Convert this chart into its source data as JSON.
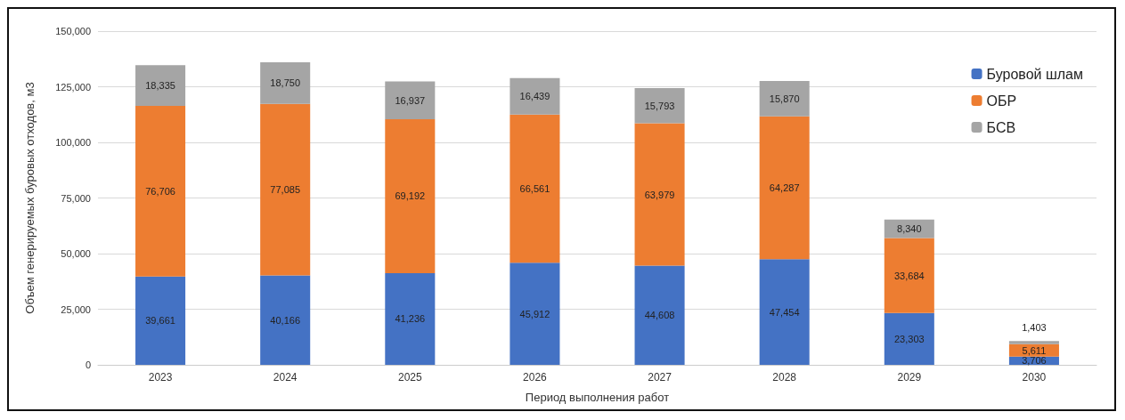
{
  "chart_data": {
    "type": "bar",
    "stacked": true,
    "xlabel": "Период выполнения работ",
    "ylabel": "Объем генерируемых буровых отходов, м3",
    "categories": [
      "2023",
      "2024",
      "2025",
      "2026",
      "2027",
      "2028",
      "2029",
      "2030"
    ],
    "series": [
      {
        "name": "Буровой шлам",
        "color": "#4472c4",
        "values": [
          39661,
          40166,
          41236,
          45912,
          44608,
          47454,
          23303,
          3706
        ],
        "value_labels": [
          "39,661",
          "40,166",
          "41,236",
          "45,912",
          "44,608",
          "47,454",
          "23,303",
          "3,706"
        ]
      },
      {
        "name": "ОБР",
        "color": "#ed7d31",
        "values": [
          76706,
          77085,
          69192,
          66561,
          63979,
          64287,
          33684,
          5611
        ],
        "value_labels": [
          "76,706",
          "77,085",
          "69,192",
          "66,561",
          "63,979",
          "64,287",
          "33,684",
          "5,611"
        ]
      },
      {
        "name": "БСВ",
        "color": "#a5a5a5",
        "values": [
          18335,
          18750,
          16937,
          16439,
          15793,
          15870,
          8340,
          1403
        ],
        "value_labels": [
          "18,335",
          "18,750",
          "16,937",
          "16,439",
          "15,793",
          "15,870",
          "8,340",
          "1,403"
        ]
      }
    ],
    "ylim": [
      0,
      150000
    ],
    "yticks": [
      0,
      {
        "value": 25000,
        "label": "25,000"
      },
      {
        "value": 50000,
        "label": "50,000"
      },
      {
        "value": 75000,
        "label": "75,000"
      },
      {
        "value": 100000,
        "label": "100,000"
      },
      {
        "value": 125000,
        "label": "125,000"
      },
      {
        "value": 150000,
        "label": "150,000"
      }
    ],
    "grid": "y",
    "legend": "top right"
  }
}
